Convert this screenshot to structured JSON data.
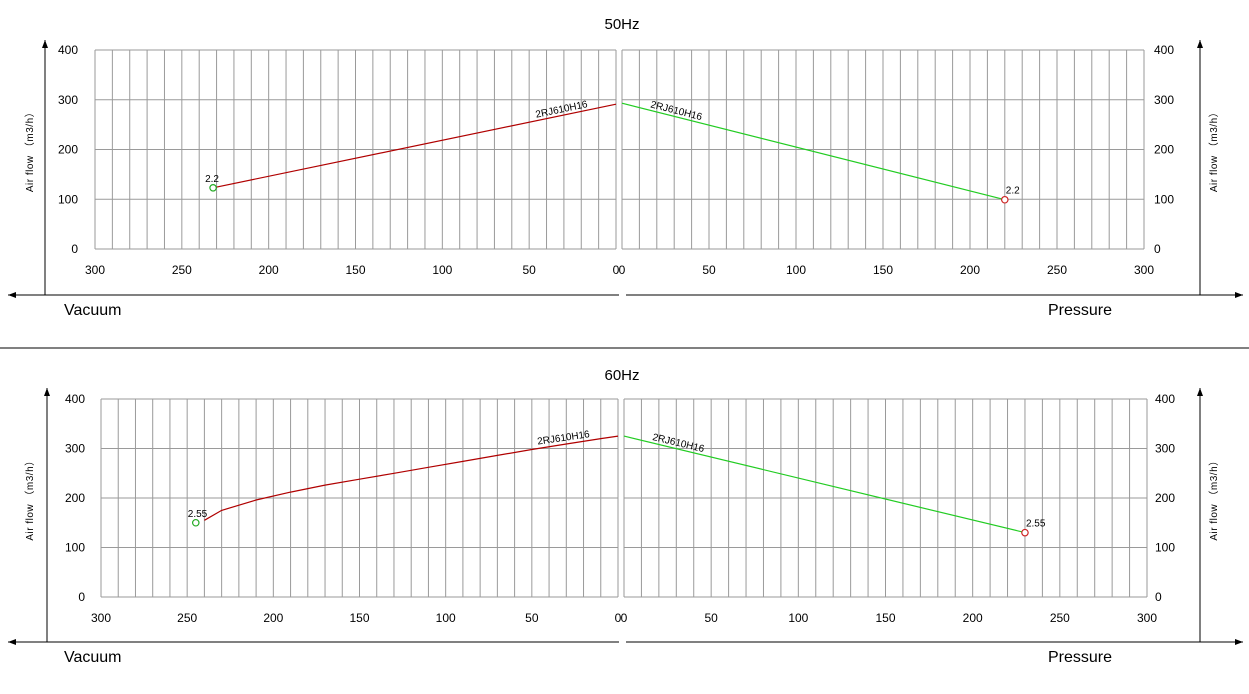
{
  "chart_data": [
    {
      "type": "line",
      "title": "50Hz",
      "ylabel": "Air flow （m3/h）",
      "ylim": [
        0,
        400
      ],
      "yticks": [
        0,
        100,
        200,
        300,
        400
      ],
      "vacuum": {
        "label": "Vacuum",
        "xlim": [
          300,
          0
        ],
        "xticks": [
          300,
          250,
          200,
          150,
          100,
          50,
          0
        ],
        "series": [
          {
            "name": "2RJ610H16",
            "color": "#b00000",
            "x": [
              232,
              0
            ],
            "y": [
              123,
              291
            ],
            "end_point": {
              "x": 232,
              "y": 123,
              "label": "2.2",
              "color": "#22aa22"
            }
          }
        ]
      },
      "pressure": {
        "label": "Pressure",
        "xlim": [
          0,
          300
        ],
        "xticks": [
          0,
          50,
          100,
          150,
          200,
          250,
          300
        ],
        "series": [
          {
            "name": "2RJ610H16",
            "color": "#22cc22",
            "x": [
              0,
              220
            ],
            "y": [
              293,
              99
            ],
            "end_point": {
              "x": 220,
              "y": 99,
              "label": "2.2",
              "color": "#cc2222"
            }
          }
        ]
      }
    },
    {
      "type": "line",
      "title": "60Hz",
      "ylabel": "Air flow （m3/h）",
      "ylim": [
        0,
        400
      ],
      "yticks": [
        0,
        100,
        200,
        300,
        400
      ],
      "vacuum": {
        "label": "Vacuum",
        "xlim": [
          300,
          0
        ],
        "xticks": [
          300,
          250,
          200,
          150,
          100,
          50,
          0
        ],
        "series": [
          {
            "name": "2RJ610H16",
            "color": "#b00000",
            "x": [
              240,
              230,
              210,
              190,
              170,
              150,
              130,
              110,
              90,
              70,
              50,
              30,
              10,
              0
            ],
            "y": [
              155,
              175,
              196,
              212,
              226,
              238,
              250,
              262,
              274,
              286,
              298,
              309,
              320,
              325
            ],
            "end_point": {
              "x": 245,
              "y": 150,
              "label": "2.55",
              "color": "#22aa22"
            }
          }
        ]
      },
      "pressure": {
        "label": "Pressure",
        "xlim": [
          0,
          300
        ],
        "xticks": [
          0,
          50,
          100,
          150,
          200,
          250,
          300
        ],
        "series": [
          {
            "name": "2RJ610H16",
            "color": "#22cc22",
            "x": [
              0,
              230
            ],
            "y": [
              325,
              130
            ],
            "end_point": {
              "x": 230,
              "y": 130,
              "label": "2.55",
              "color": "#cc2222"
            }
          }
        ]
      }
    }
  ]
}
